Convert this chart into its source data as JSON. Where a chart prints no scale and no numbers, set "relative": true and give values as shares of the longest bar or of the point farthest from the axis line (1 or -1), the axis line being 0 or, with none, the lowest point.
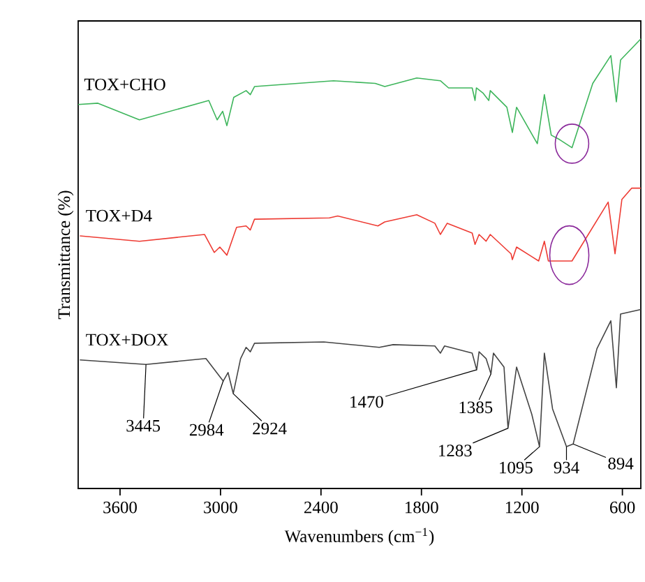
{
  "chart_data": {
    "type": "line",
    "relative": true,
    "xlabel": "Wavenumbers (cm$^{−1}$)",
    "ylabel": "Transmittance (%)",
    "xlim": [
      3850,
      490
    ],
    "xticks": [
      3600,
      3000,
      2400,
      1800,
      1200,
      600
    ],
    "series": [
      {
        "name": "TOX+CHO",
        "color": "#3db55b",
        "x": [
          3850,
          3732,
          3484,
          3070,
          3020,
          2987,
          2962,
          2921,
          2847,
          2822,
          2797,
          2325,
          2076,
          2019,
          1828,
          1687,
          1638,
          1497,
          1480,
          1472,
          1431,
          1398,
          1389,
          1290,
          1257,
          1232,
          1108,
          1066,
          1025,
          975,
          901,
          777,
          669,
          636,
          611,
          490
        ],
        "values": [
          0.854,
          0.857,
          0.82,
          0.863,
          0.82,
          0.839,
          0.807,
          0.87,
          0.885,
          0.876,
          0.894,
          0.907,
          0.901,
          0.894,
          0.913,
          0.907,
          0.891,
          0.891,
          0.863,
          0.891,
          0.879,
          0.863,
          0.885,
          0.848,
          0.792,
          0.848,
          0.767,
          0.876,
          0.786,
          0.776,
          0.758,
          0.901,
          0.963,
          0.86,
          0.953,
          1.0
        ]
      },
      {
        "name": "TOX+D4",
        "color": "#ee3b33",
        "x": [
          3840,
          3484,
          3095,
          3037,
          3004,
          2962,
          2904,
          2847,
          2822,
          2797,
          2350,
          2300,
          2060,
          2019,
          1828,
          1720,
          1687,
          1646,
          1497,
          1480,
          1456,
          1414,
          1389,
          1265,
          1257,
          1232,
          1100,
          1066,
          1042,
          901,
          685,
          644,
          603,
          545,
          490
        ],
        "values": [
          0.562,
          0.55,
          0.565,
          0.525,
          0.537,
          0.519,
          0.581,
          0.584,
          0.575,
          0.599,
          0.602,
          0.606,
          0.584,
          0.593,
          0.609,
          0.59,
          0.565,
          0.59,
          0.568,
          0.543,
          0.565,
          0.55,
          0.565,
          0.522,
          0.509,
          0.537,
          0.506,
          0.55,
          0.506,
          0.506,
          0.637,
          0.522,
          0.643,
          0.668,
          0.668
        ]
      },
      {
        "name": "TOX+DOX",
        "color": "#444444",
        "x": [
          3840,
          3445,
          3087,
          2984,
          2955,
          2924,
          2880,
          2847,
          2822,
          2797,
          2383,
          2052,
          1969,
          1720,
          1687,
          1662,
          1497,
          1470,
          1456,
          1414,
          1385,
          1370,
          1307,
          1283,
          1232,
          1141,
          1095,
          1066,
          1017,
          934,
          894,
          752,
          669,
          636,
          611,
          490
        ],
        "values": [
          0.286,
          0.276,
          0.289,
          0.239,
          0.258,
          0.211,
          0.289,
          0.314,
          0.304,
          0.323,
          0.326,
          0.314,
          0.32,
          0.317,
          0.301,
          0.317,
          0.301,
          0.264,
          0.304,
          0.289,
          0.255,
          0.301,
          0.27,
          0.134,
          0.27,
          0.165,
          0.093,
          0.301,
          0.177,
          0.093,
          0.099,
          0.311,
          0.373,
          0.224,
          0.388,
          0.398
        ]
      }
    ],
    "annotations": [
      {
        "text": "3445",
        "x": 3445,
        "y": 0.276
      },
      {
        "text": "2984",
        "x": 2984,
        "y": 0.239
      },
      {
        "text": "2924",
        "x": 2924,
        "y": 0.211
      },
      {
        "text": "1470",
        "x": 1470,
        "y": 0.264
      },
      {
        "text": "1385",
        "x": 1385,
        "y": 0.255
      },
      {
        "text": "1283",
        "x": 1283,
        "y": 0.134
      },
      {
        "text": "1095",
        "x": 1095,
        "y": 0.093
      },
      {
        "text": "934",
        "x": 934,
        "y": 0.093
      },
      {
        "text": "894",
        "x": 894,
        "y": 0.099
      }
    ]
  }
}
